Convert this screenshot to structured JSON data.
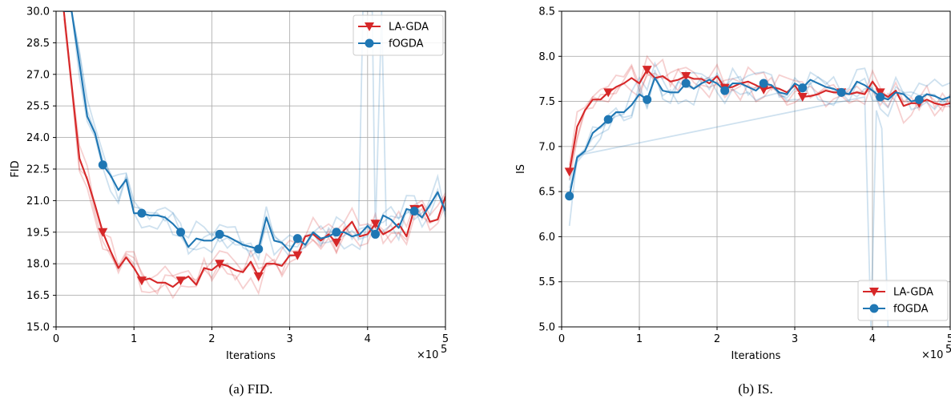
{
  "colors": {
    "la_gda": "#d62728",
    "fogda": "#1f77b4"
  },
  "chart_data": [
    {
      "type": "line",
      "caption": "(a) FID.",
      "xlabel": "Iterations",
      "ylabel": "FID",
      "x_multiplier": "×10",
      "x_multiplier_exp": "5",
      "xlim": [
        0,
        5
      ],
      "ylim": [
        15.0,
        30.0
      ],
      "xticks": [
        "0",
        "1",
        "2",
        "3",
        "4",
        "5"
      ],
      "yticks": [
        "15.0",
        "16.5",
        "18.0",
        "19.5",
        "21.0",
        "22.5",
        "24.0",
        "25.5",
        "27.0",
        "28.5",
        "30.0"
      ],
      "grid": true,
      "legend_position": "top-right",
      "series": [
        {
          "name": "LA-GDA",
          "color": "#d62728",
          "marker": "triangle-down",
          "x": [
            0.1,
            0.2,
            0.3,
            0.4,
            0.5,
            0.6,
            0.7,
            0.8,
            0.9,
            1.0,
            1.1,
            1.2,
            1.3,
            1.4,
            1.5,
            1.6,
            1.7,
            1.8,
            1.9,
            2.0,
            2.1,
            2.2,
            2.3,
            2.4,
            2.5,
            2.6,
            2.7,
            2.8,
            2.9,
            3.0,
            3.1,
            3.2,
            3.3,
            3.4,
            3.5,
            3.6,
            3.7,
            3.8,
            3.9,
            4.0,
            4.1,
            4.2,
            4.3,
            4.4,
            4.5,
            4.6,
            4.7,
            4.8,
            4.9,
            5.0
          ],
          "y": [
            30.0,
            26.5,
            23.0,
            22.0,
            20.8,
            19.5,
            18.6,
            17.8,
            18.3,
            17.8,
            17.2,
            17.3,
            17.1,
            17.1,
            16.9,
            17.2,
            17.4,
            17.0,
            17.8,
            17.7,
            18.0,
            17.9,
            17.7,
            17.6,
            18.1,
            17.4,
            18.0,
            18.0,
            17.9,
            18.4,
            18.4,
            19.3,
            19.4,
            19.1,
            19.4,
            19.0,
            19.6,
            20.0,
            19.3,
            19.4,
            19.9,
            19.4,
            19.6,
            19.9,
            19.3,
            20.6,
            20.8,
            20.0,
            20.1,
            21.2
          ],
          "marker_x": [
            0.6,
            1.1,
            1.6,
            2.1,
            2.6,
            3.1,
            3.6,
            4.1,
            4.6
          ]
        },
        {
          "name": "fOGDA",
          "color": "#1f77b4",
          "marker": "circle",
          "x": [
            0.1,
            0.2,
            0.3,
            0.4,
            0.5,
            0.6,
            0.7,
            0.8,
            0.9,
            1.0,
            1.1,
            1.2,
            1.3,
            1.4,
            1.5,
            1.6,
            1.7,
            1.8,
            1.9,
            2.0,
            2.1,
            2.2,
            2.3,
            2.4,
            2.5,
            2.6,
            2.7,
            2.8,
            2.9,
            3.0,
            3.1,
            3.2,
            3.3,
            3.4,
            3.5,
            3.6,
            3.7,
            3.8,
            3.9,
            4.0,
            4.1,
            4.2,
            4.3,
            4.4,
            4.5,
            4.6,
            4.7,
            4.8,
            4.9,
            5.0
          ],
          "y": [
            30.0,
            30.0,
            27.5,
            25.0,
            24.2,
            22.7,
            22.2,
            21.5,
            22.0,
            20.4,
            20.4,
            20.3,
            20.3,
            20.2,
            19.9,
            19.5,
            18.8,
            19.2,
            19.1,
            19.1,
            19.4,
            19.3,
            19.1,
            18.9,
            18.8,
            18.7,
            20.2,
            19.1,
            19.0,
            18.6,
            19.2,
            18.9,
            19.5,
            19.2,
            19.3,
            19.5,
            19.5,
            19.3,
            19.4,
            19.8,
            19.4,
            20.3,
            20.1,
            19.7,
            20.6,
            20.5,
            20.2,
            20.8,
            21.4,
            20.5
          ],
          "marker_x": [
            0.6,
            1.1,
            1.6,
            2.1,
            2.6,
            3.1,
            3.6,
            4.1,
            4.6
          ]
        }
      ]
    },
    {
      "type": "line",
      "caption": "(b) IS.",
      "xlabel": "Iterations",
      "ylabel": "IS",
      "x_multiplier": "×10",
      "x_multiplier_exp": "5",
      "xlim": [
        0,
        5
      ],
      "ylim": [
        5.0,
        8.5
      ],
      "xticks": [
        "0",
        "1",
        "2",
        "3",
        "4",
        "5"
      ],
      "yticks": [
        "5.0",
        "5.5",
        "6.0",
        "6.5",
        "7.0",
        "7.5",
        "8.0",
        "8.5"
      ],
      "grid": true,
      "legend_position": "bottom-right",
      "series": [
        {
          "name": "LA-GDA",
          "color": "#d62728",
          "marker": "triangle-down",
          "x": [
            0.1,
            0.2,
            0.3,
            0.4,
            0.5,
            0.6,
            0.7,
            0.8,
            0.9,
            1.0,
            1.1,
            1.2,
            1.3,
            1.4,
            1.5,
            1.6,
            1.7,
            1.8,
            1.9,
            2.0,
            2.1,
            2.2,
            2.3,
            2.4,
            2.5,
            2.6,
            2.7,
            2.8,
            2.9,
            3.0,
            3.1,
            3.2,
            3.3,
            3.4,
            3.5,
            3.6,
            3.7,
            3.8,
            3.9,
            4.0,
            4.1,
            4.2,
            4.3,
            4.4,
            4.5,
            4.6,
            4.7,
            4.8,
            4.9,
            5.0
          ],
          "y": [
            6.72,
            7.22,
            7.4,
            7.52,
            7.52,
            7.6,
            7.66,
            7.7,
            7.76,
            7.7,
            7.85,
            7.76,
            7.78,
            7.72,
            7.74,
            7.78,
            7.75,
            7.75,
            7.7,
            7.78,
            7.65,
            7.66,
            7.7,
            7.72,
            7.68,
            7.63,
            7.66,
            7.64,
            7.6,
            7.68,
            7.55,
            7.56,
            7.58,
            7.62,
            7.6,
            7.6,
            7.58,
            7.6,
            7.58,
            7.72,
            7.6,
            7.55,
            7.62,
            7.45,
            7.48,
            7.48,
            7.52,
            7.48,
            7.46,
            7.48
          ],
          "marker_x": [
            0.1,
            0.6,
            1.1,
            1.6,
            2.1,
            2.6,
            3.1,
            3.6,
            4.1,
            4.6
          ]
        },
        {
          "name": "fOGDA",
          "color": "#1f77b4",
          "marker": "circle",
          "x": [
            0.1,
            0.2,
            0.3,
            0.4,
            0.5,
            0.6,
            0.7,
            0.8,
            0.9,
            1.0,
            1.1,
            1.2,
            1.3,
            1.4,
            1.5,
            1.6,
            1.7,
            1.8,
            1.9,
            2.0,
            2.1,
            2.2,
            2.3,
            2.4,
            2.5,
            2.6,
            2.7,
            2.8,
            2.9,
            3.0,
            3.1,
            3.2,
            3.3,
            3.4,
            3.5,
            3.6,
            3.7,
            3.8,
            3.9,
            4.0,
            4.1,
            4.2,
            4.3,
            4.4,
            4.5,
            4.6,
            4.7,
            4.8,
            4.9,
            5.0
          ],
          "y": [
            6.45,
            6.88,
            6.95,
            7.15,
            7.22,
            7.3,
            7.38,
            7.38,
            7.46,
            7.58,
            7.52,
            7.76,
            7.62,
            7.6,
            7.6,
            7.7,
            7.64,
            7.7,
            7.74,
            7.7,
            7.62,
            7.7,
            7.7,
            7.66,
            7.62,
            7.7,
            7.68,
            7.6,
            7.58,
            7.7,
            7.65,
            7.74,
            7.7,
            7.66,
            7.64,
            7.6,
            7.58,
            7.72,
            7.68,
            7.62,
            7.55,
            7.52,
            7.6,
            7.58,
            7.5,
            7.52,
            7.58,
            7.56,
            7.52,
            7.55
          ],
          "marker_x": [
            0.1,
            0.6,
            1.1,
            1.6,
            2.1,
            2.6,
            3.1,
            3.6,
            4.1,
            4.6
          ]
        }
      ]
    }
  ]
}
